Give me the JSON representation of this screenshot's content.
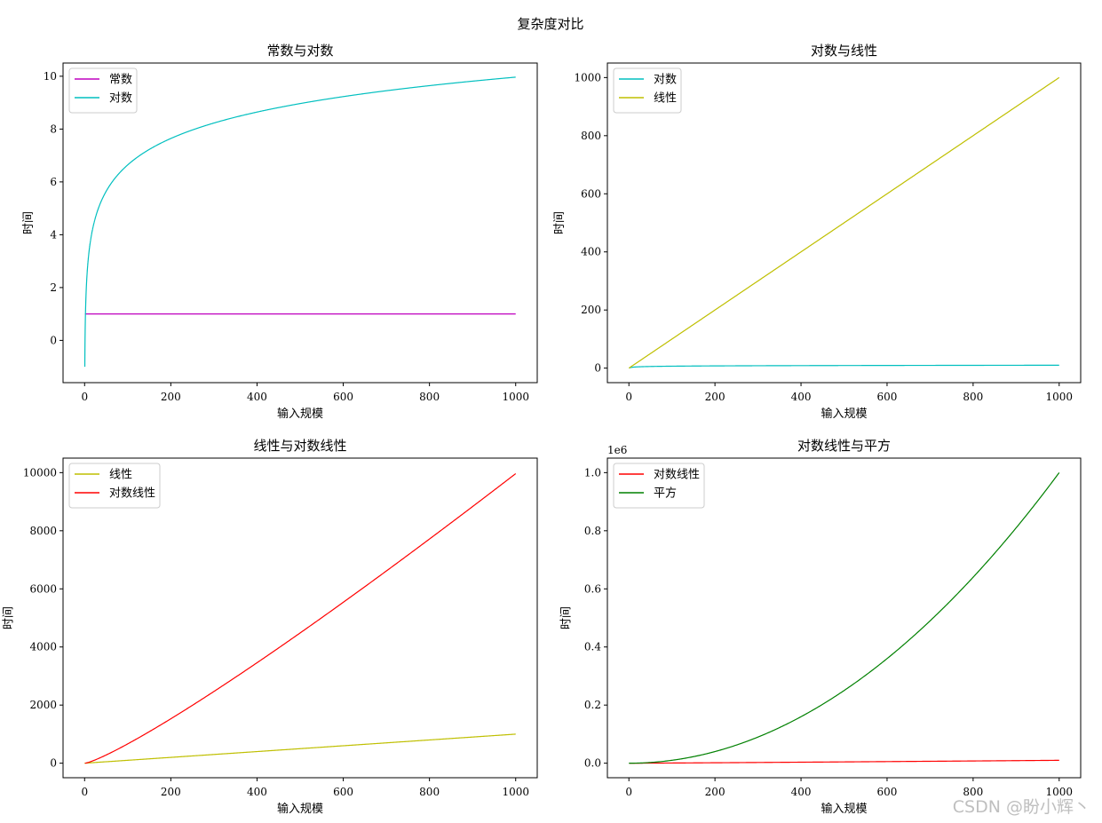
{
  "figure": {
    "suptitle": "复杂度对比",
    "watermark": "CSDN @盼小辉丶"
  },
  "chart_data": [
    {
      "type": "line",
      "title": "常数与对数",
      "xlabel": "输入规模",
      "ylabel": "时间",
      "xlim": [
        -50,
        1050
      ],
      "ylim": [
        -1.6,
        10.5
      ],
      "xticks": [
        0,
        200,
        400,
        600,
        800,
        1000
      ],
      "yticks": [
        0,
        2,
        4,
        6,
        8,
        10
      ],
      "ytick_labels": [
        "0",
        "2",
        "4",
        "6",
        "8",
        "10"
      ],
      "offset_label": "",
      "legend": "top-left",
      "grid": false,
      "series": [
        {
          "name": "常数",
          "color": "#bf00bf",
          "fn": "constant",
          "x": [
            1,
            1000
          ],
          "y": [
            1,
            1
          ]
        },
        {
          "name": "对数",
          "color": "#00bfbf",
          "fn": "log2",
          "x": [
            0.5,
            1,
            2,
            5,
            10,
            50,
            100,
            200,
            400,
            600,
            800,
            1000
          ],
          "y": [
            -1,
            0,
            1,
            2.32,
            3.32,
            5.64,
            6.64,
            7.64,
            8.64,
            9.23,
            9.64,
            9.97
          ]
        }
      ]
    },
    {
      "type": "line",
      "title": "对数与线性",
      "xlabel": "输入规模",
      "ylabel": "时间",
      "xlim": [
        -50,
        1050
      ],
      "ylim": [
        -50,
        1050
      ],
      "xticks": [
        0,
        200,
        400,
        600,
        800,
        1000
      ],
      "yticks": [
        0,
        200,
        400,
        600,
        800,
        1000
      ],
      "ytick_labels": [
        "0",
        "200",
        "400",
        "600",
        "800",
        "1000"
      ],
      "offset_label": "",
      "legend": "top-left",
      "grid": false,
      "series": [
        {
          "name": "对数",
          "color": "#00bfbf",
          "fn": "log2",
          "x": [
            1,
            10,
            100,
            1000
          ],
          "y": [
            0,
            3.32,
            6.64,
            9.97
          ]
        },
        {
          "name": "线性",
          "color": "#bfbf00",
          "fn": "linear",
          "x": [
            0,
            1000
          ],
          "y": [
            0,
            1000
          ]
        }
      ]
    },
    {
      "type": "line",
      "title": "线性与对数线性",
      "xlabel": "输入规模",
      "ylabel": "时间",
      "xlim": [
        -50,
        1050
      ],
      "ylim": [
        -500,
        10500
      ],
      "xticks": [
        0,
        200,
        400,
        600,
        800,
        1000
      ],
      "yticks": [
        0,
        2000,
        4000,
        6000,
        8000,
        10000
      ],
      "ytick_labels": [
        "0",
        "2000",
        "4000",
        "6000",
        "8000",
        "10000"
      ],
      "offset_label": "",
      "legend": "top-left",
      "grid": false,
      "series": [
        {
          "name": "线性",
          "color": "#bfbf00",
          "fn": "linear",
          "x": [
            0,
            1000
          ],
          "y": [
            0,
            1000
          ]
        },
        {
          "name": "对数线性",
          "color": "#ff0000",
          "fn": "nlog2n",
          "x": [
            1,
            200,
            400,
            600,
            800,
            1000
          ],
          "y": [
            0,
            1529,
            3458,
            5537,
            7715,
            9966
          ]
        }
      ]
    },
    {
      "type": "line",
      "title": "对数线性与平方",
      "xlabel": "输入规模",
      "ylabel": "时间",
      "xlim": [
        -50,
        1050
      ],
      "ylim": [
        -50000,
        1050000
      ],
      "xticks": [
        0,
        200,
        400,
        600,
        800,
        1000
      ],
      "yticks": [
        0,
        200000,
        400000,
        600000,
        800000,
        1000000
      ],
      "ytick_labels": [
        "0.0",
        "0.2",
        "0.4",
        "0.6",
        "0.8",
        "1.0"
      ],
      "offset_label": "1e6",
      "legend": "top-left",
      "grid": false,
      "series": [
        {
          "name": "对数线性",
          "color": "#ff0000",
          "fn": "nlog2n",
          "x": [
            1,
            500,
            1000
          ],
          "y": [
            0,
            4483,
            9966
          ]
        },
        {
          "name": "平方",
          "color": "#008000",
          "fn": "square",
          "x": [
            0,
            200,
            400,
            600,
            800,
            1000
          ],
          "y": [
            0,
            40000,
            160000,
            360000,
            640000,
            1000000
          ]
        }
      ]
    }
  ]
}
